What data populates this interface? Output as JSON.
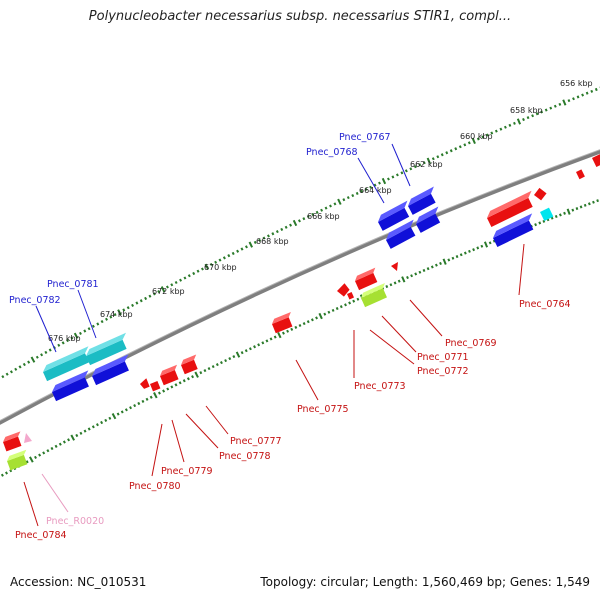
{
  "title": "Polynucleobacter necessarius subsp. necessarius STIR1, compl...",
  "accession": "Accession: NC_010531",
  "topology": "Topology: circular; Length: 1,560,469 bp; Genes: 1,549",
  "colors": {
    "backbone": "#808080",
    "tick": "#2a7a2a",
    "rna": "#f3a8cc",
    "cds_minus": "#e81010",
    "cds_plus": "#1010d8",
    "other_plus": "#1bbcc4",
    "other_minus": "#a6e032",
    "label_blue": "#1f1fcf",
    "label_red": "#c41212",
    "label_pink": "#e89bc0"
  },
  "scale_labels": [
    "656 kbp",
    "658 kbp",
    "660 kbp",
    "662 kbp",
    "664 kbp",
    "666 kbp",
    "668 kbp",
    "670 kbp",
    "672 kbp",
    "674 kbp",
    "676 kbp"
  ],
  "gene_labels": {
    "plus": [
      "Pnec_0767",
      "Pnec_0768",
      "Pnec_0781",
      "Pnec_0782"
    ],
    "minus": [
      "Pnec_0764",
      "Pnec_0769",
      "Pnec_0771",
      "Pnec_0772",
      "Pnec_0773",
      "Pnec_0775",
      "Pnec_0777",
      "Pnec_0778",
      "Pnec_0779",
      "Pnec_0780",
      "Pnec_0784"
    ],
    "rna": [
      "Pnec_R0020"
    ]
  }
}
